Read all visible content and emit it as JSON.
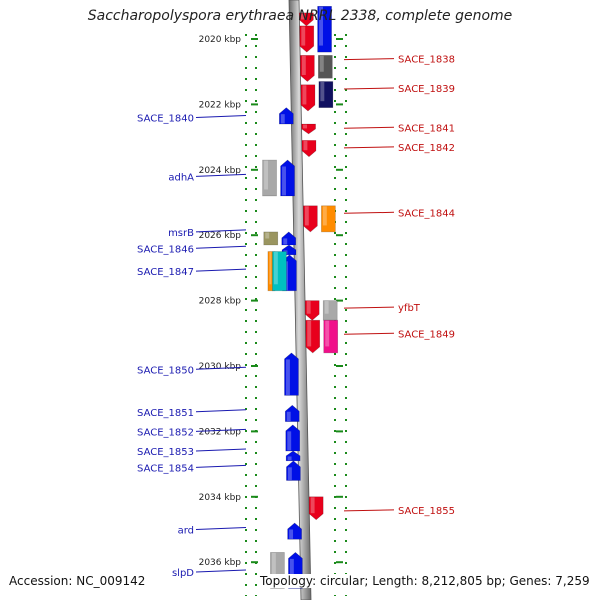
{
  "title": "Saccharopolyspora erythraea NRRL 2338, complete genome",
  "footer": {
    "accession": "Accession: NC_009142",
    "info": "Topology: circular; Length: 8,212,805 bp; Genes: 7,259"
  },
  "colors": {
    "forward": "#e8001c",
    "reverse": "#0010e6",
    "gray": "#a8a8a8",
    "darkgray": "#555555",
    "navy": "#101060",
    "orange": "#ff8c00",
    "cyan": "#00c0c0",
    "olive": "#9a9560",
    "magenta": "#f0108a",
    "tick": "#1a8a1a",
    "left_label": "#1a1ab0",
    "right_label": "#c01010"
  },
  "scale_ticks": [
    {
      "label": "2020 kbp",
      "kbp": 2020
    },
    {
      "label": "2022 kbp",
      "kbp": 2022
    },
    {
      "label": "2024 kbp",
      "kbp": 2024
    },
    {
      "label": "2026 kbp",
      "kbp": 2026
    },
    {
      "label": "2028 kbp",
      "kbp": 2028
    },
    {
      "label": "2030 kbp",
      "kbp": 2030
    },
    {
      "label": "2032 kbp",
      "kbp": 2032
    },
    {
      "label": "2034 kbp",
      "kbp": 2034
    },
    {
      "label": "2036 kbp",
      "kbp": 2036
    }
  ],
  "features": [
    {
      "track": "fwd1",
      "start": 2019.2,
      "end": 2019.6,
      "color": "forward",
      "dir": "down"
    },
    {
      "track": "fwd1",
      "start": 2019.6,
      "end": 2020.4,
      "color": "forward",
      "dir": "down"
    },
    {
      "track": "fwd1",
      "start": 2020.5,
      "end": 2021.3,
      "color": "forward",
      "dir": "down"
    },
    {
      "track": "fwd1",
      "start": 2021.4,
      "end": 2022.2,
      "color": "forward",
      "dir": "down"
    },
    {
      "track": "fwd1",
      "start": 2022.6,
      "end": 2022.9,
      "color": "forward",
      "dir": "down"
    },
    {
      "track": "fwd1",
      "start": 2023.1,
      "end": 2023.6,
      "color": "forward",
      "dir": "down"
    },
    {
      "track": "fwd1",
      "start": 2025.1,
      "end": 2025.9,
      "color": "forward",
      "dir": "down"
    },
    {
      "track": "fwd1",
      "start": 2028.0,
      "end": 2028.6,
      "color": "forward",
      "dir": "down"
    },
    {
      "track": "fwd1",
      "start": 2028.6,
      "end": 2029.6,
      "color": "forward",
      "dir": "down"
    },
    {
      "track": "fwd1",
      "start": 2034.0,
      "end": 2034.7,
      "color": "forward",
      "dir": "down"
    },
    {
      "track": "fwd2",
      "start": 2019.0,
      "end": 2020.4,
      "color": "reverse",
      "dir": "none"
    },
    {
      "track": "fwd2",
      "start": 2020.5,
      "end": 2021.2,
      "color": "darkgray",
      "dir": "none"
    },
    {
      "track": "fwd2",
      "start": 2021.3,
      "end": 2022.1,
      "color": "navy",
      "dir": "none"
    },
    {
      "track": "fwd2",
      "start": 2025.1,
      "end": 2025.9,
      "color": "orange",
      "dir": "none"
    },
    {
      "track": "fwd2",
      "start": 2028.0,
      "end": 2028.6,
      "color": "gray",
      "dir": "none"
    },
    {
      "track": "fwd2",
      "start": 2028.6,
      "end": 2029.6,
      "color": "magenta",
      "dir": "none"
    },
    {
      "track": "rev1",
      "start": 2022.1,
      "end": 2022.6,
      "color": "reverse",
      "dir": "up"
    },
    {
      "track": "rev1",
      "start": 2023.7,
      "end": 2024.8,
      "color": "reverse",
      "dir": "up"
    },
    {
      "track": "rev1",
      "start": 2025.9,
      "end": 2026.3,
      "color": "reverse",
      "dir": "up"
    },
    {
      "track": "rev1",
      "start": 2026.3,
      "end": 2026.6,
      "color": "reverse",
      "dir": "up"
    },
    {
      "track": "rev1",
      "start": 2026.6,
      "end": 2027.7,
      "color": "reverse",
      "dir": "up"
    },
    {
      "track": "rev1",
      "start": 2029.6,
      "end": 2030.9,
      "color": "reverse",
      "dir": "up"
    },
    {
      "track": "rev1",
      "start": 2031.2,
      "end": 2031.7,
      "color": "reverse",
      "dir": "up"
    },
    {
      "track": "rev1",
      "start": 2031.8,
      "end": 2032.6,
      "color": "reverse",
      "dir": "up"
    },
    {
      "track": "rev1",
      "start": 2032.6,
      "end": 2032.9,
      "color": "reverse",
      "dir": "up"
    },
    {
      "track": "rev1",
      "start": 2032.9,
      "end": 2033.5,
      "color": "reverse",
      "dir": "up"
    },
    {
      "track": "rev1",
      "start": 2034.8,
      "end": 2035.3,
      "color": "reverse",
      "dir": "up"
    },
    {
      "track": "rev1",
      "start": 2035.7,
      "end": 2036.8,
      "color": "reverse",
      "dir": "up"
    },
    {
      "track": "rev2",
      "start": 2023.7,
      "end": 2024.8,
      "color": "gray",
      "dir": "none"
    },
    {
      "track": "rev2",
      "start": 2025.9,
      "end": 2026.3,
      "color": "olive",
      "dir": "none"
    },
    {
      "track": "rev2",
      "start": 2026.5,
      "end": 2027.7,
      "color": "orange",
      "dir": "none"
    },
    {
      "track": "rev2b",
      "start": 2026.5,
      "end": 2027.7,
      "color": "cyan",
      "dir": "none"
    },
    {
      "track": "rev2",
      "start": 2035.7,
      "end": 2036.8,
      "color": "gray",
      "dir": "none"
    }
  ],
  "left_labels": [
    {
      "text": "SACE_1840",
      "kbp": 2022.4
    },
    {
      "text": "adhA",
      "kbp": 2024.2
    },
    {
      "text": "msrB",
      "kbp": 2025.9
    },
    {
      "text": "SACE_1846",
      "kbp": 2026.4
    },
    {
      "text": "SACE_1847",
      "kbp": 2027.1
    },
    {
      "text": "SACE_1850",
      "kbp": 2030.1
    },
    {
      "text": "SACE_1851",
      "kbp": 2031.4
    },
    {
      "text": "SACE_1852",
      "kbp": 2032.0
    },
    {
      "text": "SACE_1853",
      "kbp": 2032.6
    },
    {
      "text": "SACE_1854",
      "kbp": 2033.1
    },
    {
      "text": "ard",
      "kbp": 2035.0
    },
    {
      "text": "slpD",
      "kbp": 2036.3
    }
  ],
  "right_labels": [
    {
      "text": "SACE_1838",
      "kbp": 2020.6
    },
    {
      "text": "SACE_1839",
      "kbp": 2021.5
    },
    {
      "text": "SACE_1841",
      "kbp": 2022.7
    },
    {
      "text": "SACE_1842",
      "kbp": 2023.3
    },
    {
      "text": "SACE_1844",
      "kbp": 2025.3
    },
    {
      "text": "yfbT",
      "kbp": 2028.2
    },
    {
      "text": "SACE_1849",
      "kbp": 2029.0
    },
    {
      "text": "SACE_1855",
      "kbp": 2034.4
    }
  ]
}
